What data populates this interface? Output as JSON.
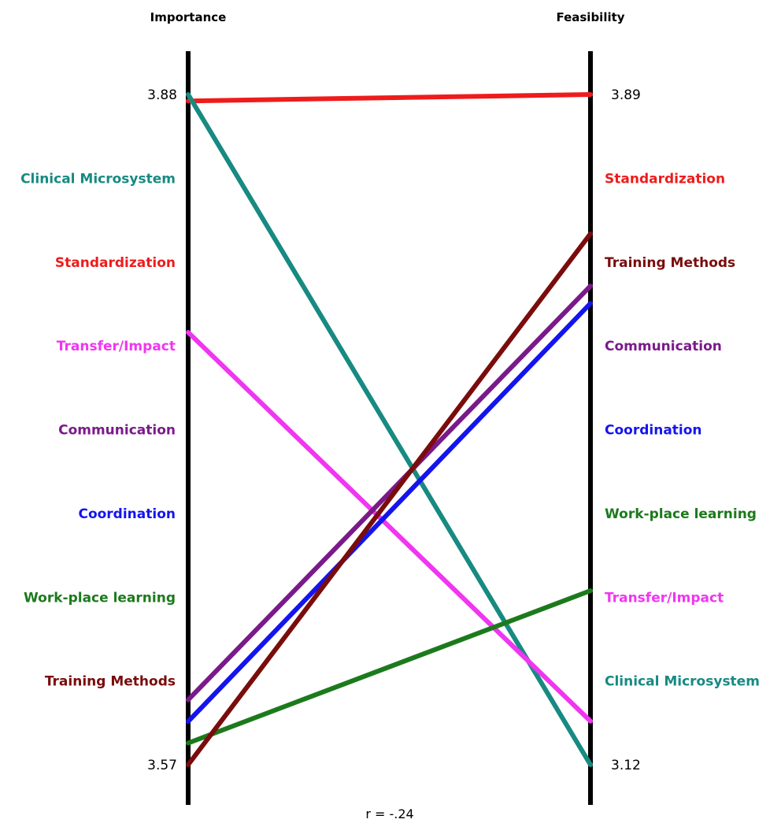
{
  "chart_data": {
    "type": "line",
    "axes": [
      {
        "title": "Importance",
        "min": 3.57,
        "max": 3.88,
        "tick_labels": [
          "3.88",
          "3.57"
        ]
      },
      {
        "title": "Feasibility",
        "min": 3.12,
        "max": 3.89,
        "tick_labels": [
          "3.89",
          "3.12"
        ]
      }
    ],
    "left_rank_labels": [
      "Clinical Microsystem",
      "Standardization",
      "Transfer/Impact",
      "Communication",
      "Coordination",
      "Work-place learning",
      "Training Methods"
    ],
    "right_rank_labels": [
      "Standardization",
      "Training Methods",
      "Communication",
      "Coordination",
      "Work-place learning",
      "Transfer/Impact",
      "Clinical Microsystem"
    ],
    "series": [
      {
        "name": "Standardization",
        "color": "#ee1c1c",
        "values": [
          3.877,
          3.89
        ]
      },
      {
        "name": "Clinical Microsystem",
        "color": "#178a82",
        "values": [
          3.88,
          3.12
        ]
      },
      {
        "name": "Transfer/Impact",
        "color": "#f036f0",
        "values": [
          3.77,
          3.17
        ]
      },
      {
        "name": "Communication",
        "color": "#7a1a8a",
        "values": [
          3.6,
          3.67
        ]
      },
      {
        "name": "Coordination",
        "color": "#1414ee",
        "values": [
          3.59,
          3.65
        ]
      },
      {
        "name": "Work-place learning",
        "color": "#1c7a1c",
        "values": [
          3.58,
          3.32
        ]
      },
      {
        "name": "Training Methods",
        "color": "#7a0c0c",
        "values": [
          3.57,
          3.73
        ]
      }
    ],
    "annotation": "r = -.24",
    "grid": false
  }
}
